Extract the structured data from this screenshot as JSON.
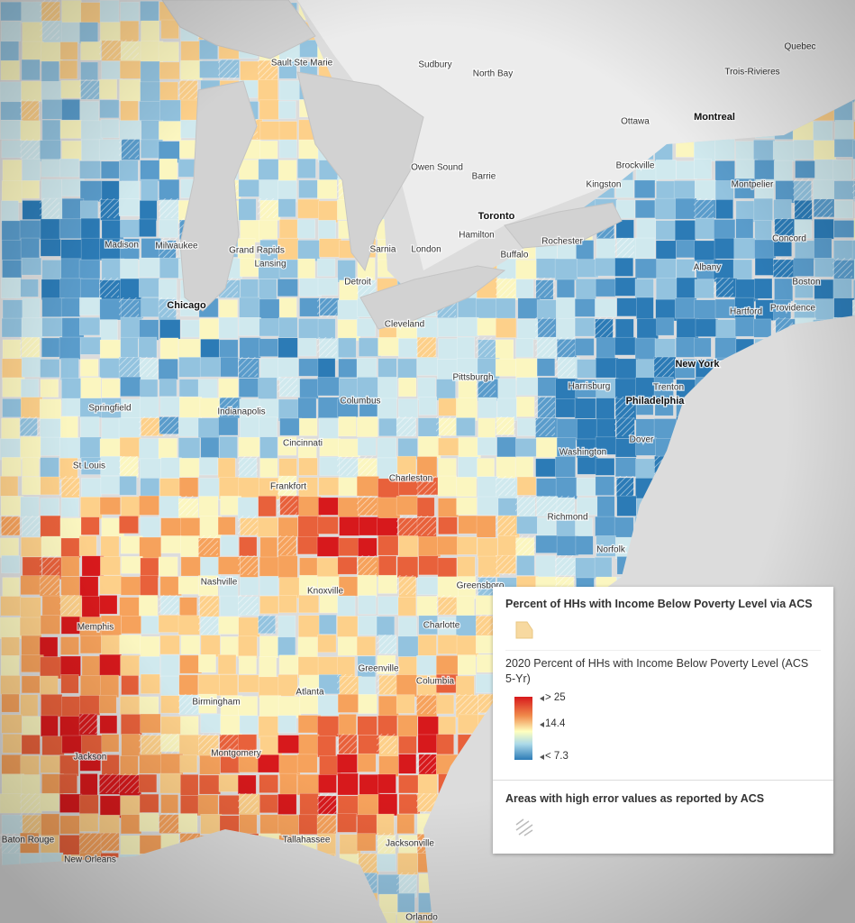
{
  "cities": [
    "Sault Ste Marie",
    "Sudbury",
    "North Bay",
    "Quebec",
    "Trois-Rivieres",
    "Ottawa",
    "Montreal",
    "Owen Sound",
    "Barrie",
    "Brockville",
    "Kingston",
    "Montpelier",
    "Toronto",
    "Madison",
    "Milwaukee",
    "Grand Rapids",
    "Sarnia",
    "London",
    "Hamilton",
    "Rochester",
    "Concord",
    "Lansing",
    "Buffalo",
    "Albany",
    "Detroit",
    "Boston",
    "Chicago",
    "Hartford",
    "Providence",
    "Cleveland",
    "New York",
    "Pittsburgh",
    "Harrisburg",
    "Trenton",
    "Columbus",
    "Philadelphia",
    "Springfield",
    "Indianapolis",
    "Cincinnati",
    "Dover",
    "St Louis",
    "Washington",
    "Charleston",
    "Frankfort",
    "Richmond",
    "Norfolk",
    "Nashville",
    "Knoxville",
    "Greensboro",
    "Memphis",
    "Charlotte",
    "Greenville",
    "Atlanta",
    "Columbia",
    "Birmingham",
    "Montgomery",
    "Jackson",
    "Tallahassee",
    "Jacksonville",
    "Baton Rouge",
    "New Orleans",
    "Orlando"
  ],
  "legend": {
    "title": "Percent of HHs with Income Below Poverty Level via ACS",
    "subtitle": "2020 Percent of HHs with Income Below Poverty Level (ACS 5-Yr)",
    "ramp_labels": [
      "> 25",
      "14.4",
      "< 7.3"
    ],
    "error_title": "Areas with high error values as reported by ACS"
  }
}
